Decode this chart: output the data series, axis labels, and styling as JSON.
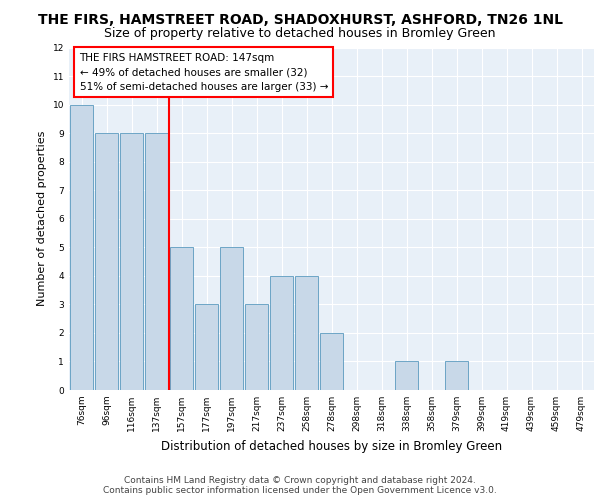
{
  "title": "THE FIRS, HAMSTREET ROAD, SHADOXHURST, ASHFORD, TN26 1NL",
  "subtitle": "Size of property relative to detached houses in Bromley Green",
  "xlabel": "Distribution of detached houses by size in Bromley Green",
  "ylabel": "Number of detached properties",
  "footer_line1": "Contains HM Land Registry data © Crown copyright and database right 2024.",
  "footer_line2": "Contains public sector information licensed under the Open Government Licence v3.0.",
  "annotation_line1": "THE FIRS HAMSTREET ROAD: 147sqm",
  "annotation_line2": "← 49% of detached houses are smaller (32)",
  "annotation_line3": "51% of semi-detached houses are larger (33) →",
  "bar_labels": [
    "76sqm",
    "96sqm",
    "116sqm",
    "137sqm",
    "157sqm",
    "177sqm",
    "197sqm",
    "217sqm",
    "237sqm",
    "258sqm",
    "278sqm",
    "298sqm",
    "318sqm",
    "338sqm",
    "358sqm",
    "379sqm",
    "399sqm",
    "419sqm",
    "439sqm",
    "459sqm",
    "479sqm"
  ],
  "bar_values": [
    10,
    9,
    9,
    9,
    5,
    3,
    5,
    3,
    4,
    4,
    2,
    0,
    0,
    1,
    0,
    1,
    0,
    0,
    0,
    0,
    0
  ],
  "bar_color": "#c8d8e8",
  "bar_edge_color": "#5a9abf",
  "red_line_x": 3.5,
  "ylim": [
    0,
    12
  ],
  "yticks": [
    0,
    1,
    2,
    3,
    4,
    5,
    6,
    7,
    8,
    9,
    10,
    11,
    12
  ],
  "bg_color": "#ffffff",
  "plot_bg_color": "#e8f0f8",
  "grid_color": "#ffffff",
  "title_fontsize": 10,
  "subtitle_fontsize": 9,
  "annotation_fontsize": 7.5,
  "ylabel_fontsize": 8,
  "xlabel_fontsize": 8.5,
  "tick_fontsize": 6.5,
  "footer_fontsize": 6.5
}
